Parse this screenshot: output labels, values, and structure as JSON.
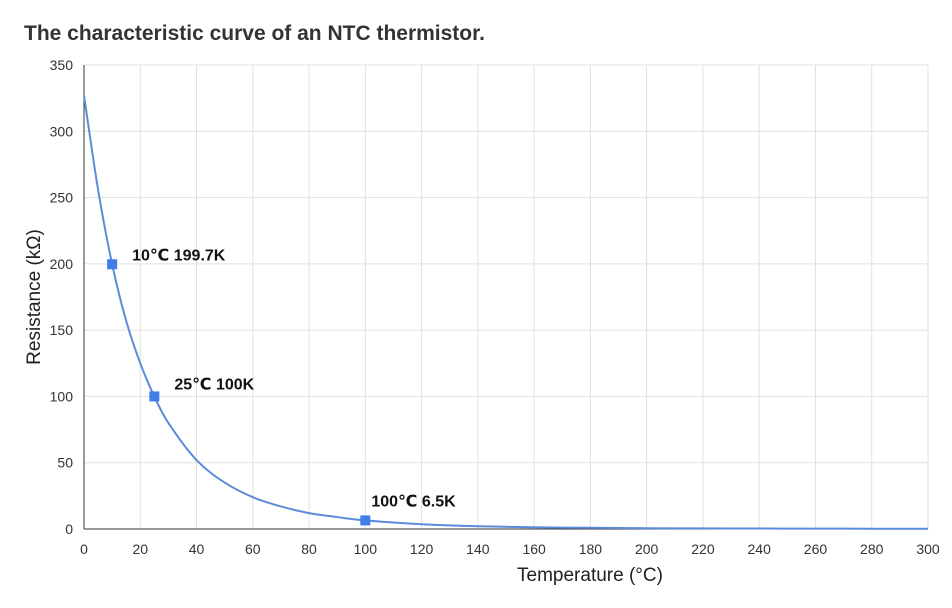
{
  "chart_data": {
    "type": "line",
    "title": "The characteristic curve of an NTC thermistor.",
    "xlabel": "Temperature (°C)",
    "ylabel": "Resistance (kΩ)",
    "xlim": [
      0,
      300
    ],
    "ylim": [
      0,
      350
    ],
    "x_ticks": [
      0,
      20,
      40,
      60,
      80,
      100,
      120,
      140,
      160,
      180,
      200,
      220,
      240,
      260,
      280,
      300
    ],
    "y_ticks": [
      0,
      50,
      100,
      150,
      200,
      250,
      300,
      350
    ],
    "grid": true,
    "line_color": "#5b8bd9",
    "marker_color": "#3f7ee8",
    "series": [
      {
        "x": [
          0,
          5,
          10,
          15,
          20,
          25,
          30,
          40,
          50,
          60,
          70,
          80,
          90,
          100,
          120,
          140,
          160,
          180,
          200,
          220,
          240,
          260,
          280,
          300
        ],
        "values": [
          327,
          256,
          199.7,
          157,
          125,
          100,
          80,
          52,
          35,
          24,
          17,
          12,
          9,
          6.5,
          3.6,
          2.1,
          1.3,
          0.9,
          0.6,
          0.45,
          0.35,
          0.27,
          0.22,
          0.18
        ]
      }
    ],
    "annotations": [
      {
        "x": 10,
        "y": 199.7,
        "text": "10℃ 199.7K"
      },
      {
        "x": 25,
        "y": 100,
        "text": "25℃ 100K"
      },
      {
        "x": 100,
        "y": 6.5,
        "text": "100℃ 6.5K"
      }
    ]
  }
}
